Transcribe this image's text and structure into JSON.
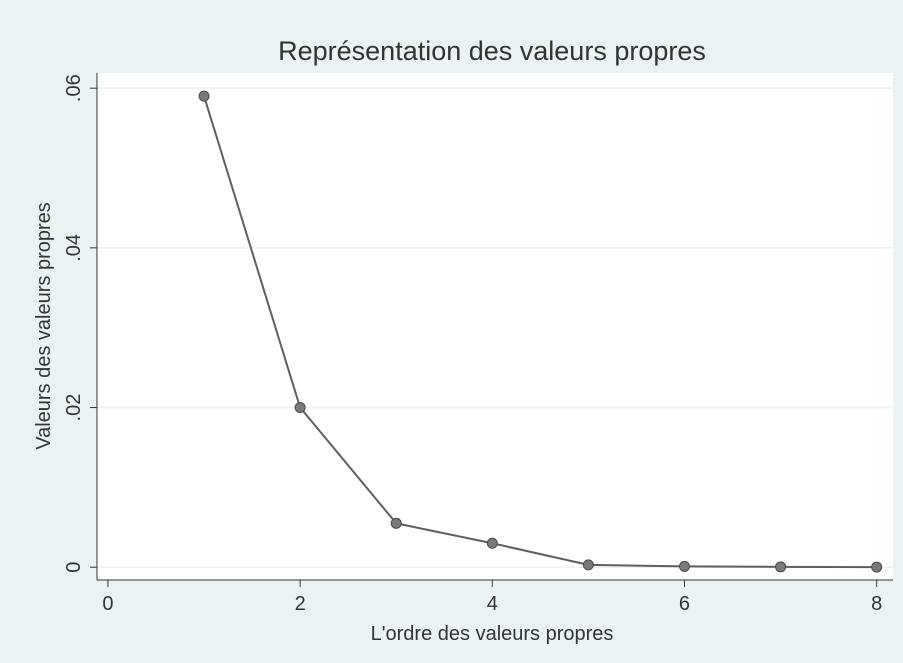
{
  "chart_data": {
    "type": "line",
    "title": "Représentation des valeurs propres",
    "xlabel": "L'ordre des valeurs propres",
    "ylabel": "Valeurs des valeurs propres",
    "x": [
      1,
      2,
      3,
      4,
      5,
      6,
      7,
      8
    ],
    "series": [
      {
        "name": "Valeurs propres",
        "color": "#5f5f5f",
        "marker_color": "#7a7a7a",
        "values": [
          0.059,
          0.02,
          0.0055,
          0.003,
          0.0003,
          0.0001,
          5e-05,
          2e-05
        ]
      }
    ],
    "xlim": [
      -0.114,
      8.17
    ],
    "xticks": [
      0,
      2,
      4,
      6,
      8
    ],
    "ylim": [
      -0.0016,
      0.0619
    ],
    "yticks": [
      0,
      {
        "value": 0.02,
        "label": ".02"
      },
      {
        "value": 0.04,
        "label": ".04"
      },
      {
        "value": 0.06,
        "label": ".06"
      }
    ],
    "grid": true
  }
}
